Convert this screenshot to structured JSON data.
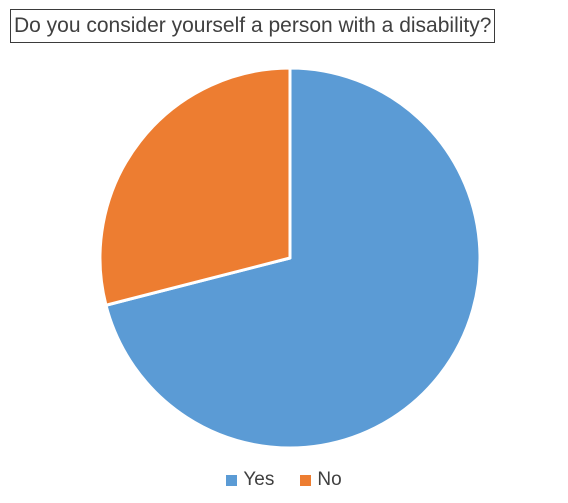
{
  "chart_data": {
    "type": "pie",
    "title": "Do you consider yourself a person with a disability?",
    "categories": [
      "Yes",
      "No"
    ],
    "values": [
      71,
      29
    ],
    "colors": [
      "#5b9bd5",
      "#ed7d31"
    ],
    "legend_position": "bottom"
  }
}
